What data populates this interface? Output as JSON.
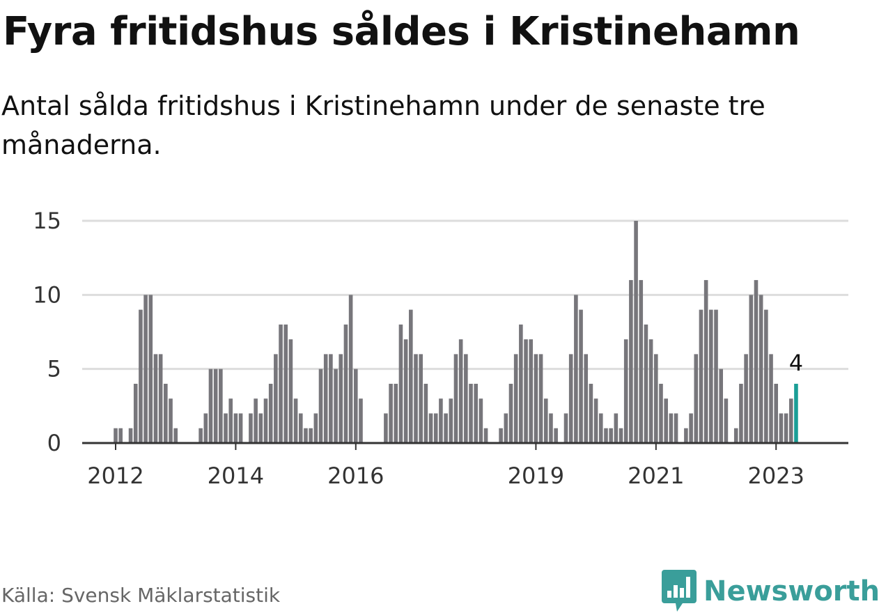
{
  "title": "Fyra fritidshus såldes i Kristinehamn",
  "subtitle": "Antal sålda fritidshus i Kristinehamn under de senaste tre månaderna.",
  "source": "Källa: Svensk Mäklarstatistik",
  "brand": "Newsworthy",
  "colors": {
    "bar": "#77767b",
    "highlight": "#1a9e96",
    "grid": "#dddddd",
    "axis": "#333333",
    "brand": "#3a9e9a"
  },
  "chart_data": {
    "type": "bar",
    "title": "",
    "xlabel": "",
    "ylabel": "",
    "ylim": [
      0,
      15
    ],
    "yticks": [
      0,
      5,
      10,
      15
    ],
    "xticks": [
      "2012",
      "2014",
      "2016",
      "2019",
      "2021",
      "2023"
    ],
    "grid": "horizontal",
    "start": "2011-10",
    "end": "2023-02",
    "values": [
      0,
      0,
      0,
      1,
      1,
      0,
      1,
      4,
      9,
      10,
      10,
      6,
      6,
      4,
      3,
      1,
      0,
      0,
      0,
      0,
      1,
      2,
      5,
      5,
      5,
      2,
      3,
      2,
      2,
      0,
      2,
      3,
      2,
      3,
      4,
      6,
      8,
      8,
      7,
      3,
      2,
      1,
      1,
      2,
      5,
      6,
      6,
      5,
      6,
      8,
      10,
      5,
      3,
      0,
      0,
      0,
      0,
      2,
      4,
      4,
      8,
      7,
      9,
      6,
      6,
      4,
      2,
      2,
      3,
      2,
      3,
      6,
      7,
      6,
      4,
      4,
      3,
      1,
      0,
      0,
      1,
      2,
      4,
      6,
      8,
      7,
      7,
      6,
      6,
      3,
      2,
      1,
      0,
      2,
      6,
      10,
      9,
      6,
      4,
      3,
      2,
      1,
      1,
      2,
      1,
      7,
      11,
      15,
      11,
      8,
      7,
      6,
      4,
      3,
      2,
      2,
      0,
      1,
      2,
      6,
      9,
      11,
      9,
      9,
      5,
      3,
      0,
      1,
      4,
      6,
      10,
      11,
      10,
      9,
      6,
      4,
      2,
      2,
      3,
      4
    ],
    "highlight": {
      "label": "4",
      "value": 4
    }
  }
}
